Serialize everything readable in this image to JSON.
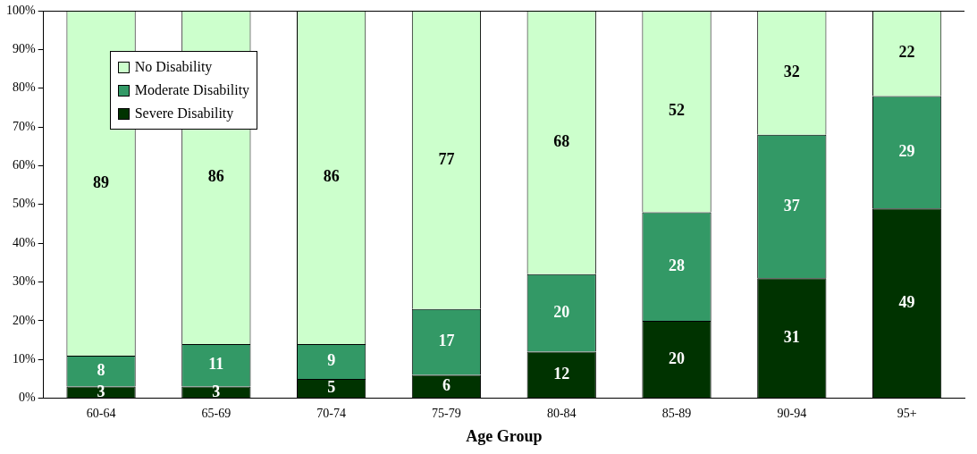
{
  "chart_data": {
    "type": "bar",
    "stacked": true,
    "xlabel": "Age Group",
    "categories": [
      "60-64",
      "65-69",
      "70-74",
      "75-79",
      "80-84",
      "85-89",
      "90-94",
      "95+"
    ],
    "series": [
      {
        "name": "Severe Disability",
        "color": "#003300",
        "values": [
          3,
          3,
          5,
          6,
          12,
          20,
          31,
          49
        ]
      },
      {
        "name": "Moderate Disability",
        "color": "#339966",
        "values": [
          8,
          11,
          9,
          17,
          20,
          28,
          37,
          29
        ]
      },
      {
        "name": "No Disability",
        "color": "#ccffcc",
        "values": [
          89,
          86,
          86,
          77,
          68,
          52,
          32,
          22
        ]
      }
    ],
    "ylim": [
      0,
      100
    ],
    "yticks": [
      {
        "value": 0,
        "label": "0%"
      },
      {
        "value": 10,
        "label": "10%"
      },
      {
        "value": 20,
        "label": "20%"
      },
      {
        "value": 30,
        "label": "30%"
      },
      {
        "value": 40,
        "label": "40%"
      },
      {
        "value": 50,
        "label": "50%"
      },
      {
        "value": 60,
        "label": "60%"
      },
      {
        "value": 70,
        "label": "70%"
      },
      {
        "value": 80,
        "label": "80%"
      },
      {
        "value": 90,
        "label": "90%"
      },
      {
        "value": 100,
        "label": "100%"
      }
    ],
    "grid": false,
    "legend": "top left",
    "data_labels": true
  }
}
